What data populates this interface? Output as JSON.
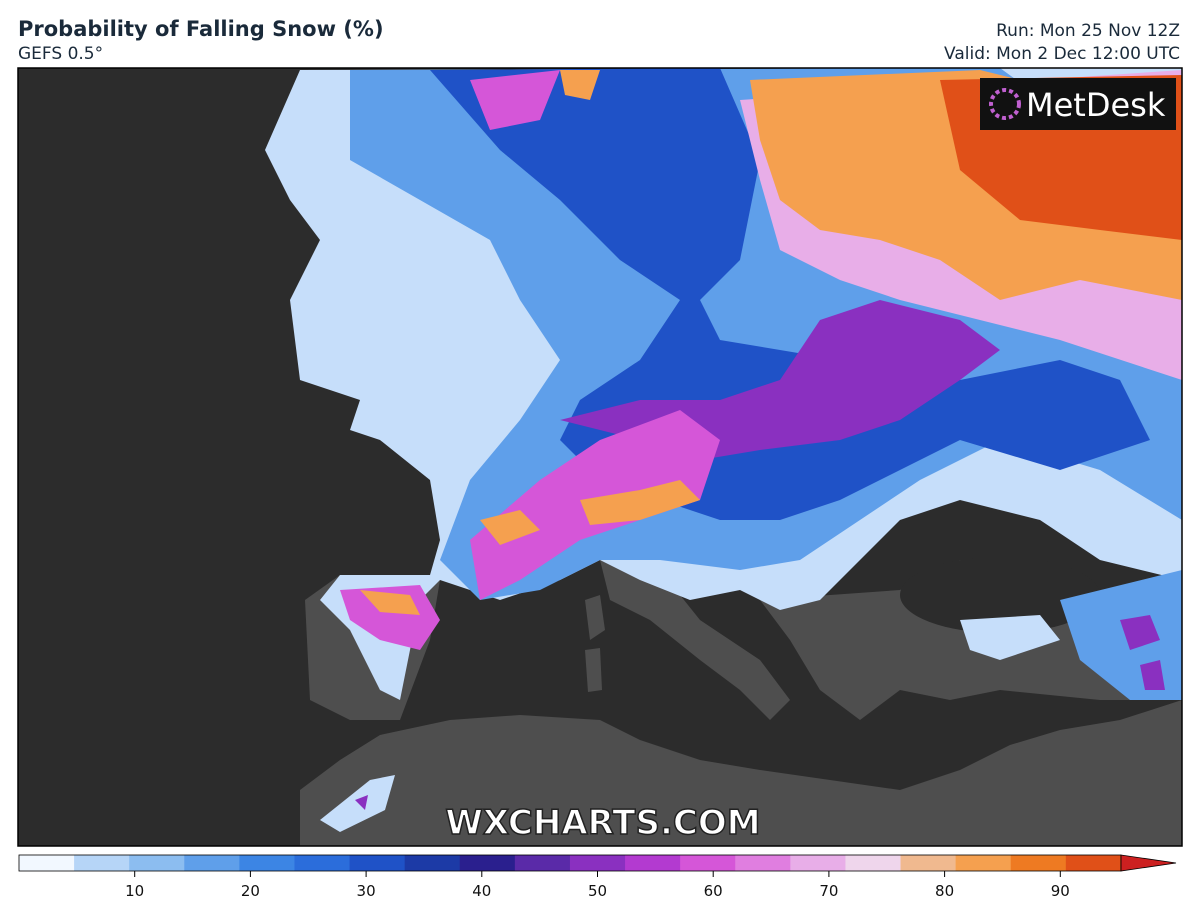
{
  "header": {
    "title": "Probability of Falling Snow (%)",
    "model": "GEFS 0.5°",
    "run": "Run: Mon 25 Nov 12Z",
    "valid": "Valid: Mon 2 Dec 12:00 UTC"
  },
  "logo": "MetDesk",
  "watermark": "WXCHARTS.COM",
  "colorbar": {
    "range": [
      0,
      100
    ],
    "ticks": [
      10,
      20,
      30,
      40,
      50,
      60,
      70,
      80,
      90
    ],
    "extend": "max",
    "colors": [
      "#f2f8ff",
      "#b6d5f7",
      "#8cbdf0",
      "#5f9fea",
      "#3c85e4",
      "#2b6ddb",
      "#1f52c7",
      "#1c3aa6",
      "#2a1f8e",
      "#5a2aa8",
      "#8a30c0",
      "#b33ad0",
      "#d556d8",
      "#e07ee0",
      "#e8aee8",
      "#efd6ec",
      "#f0b98f",
      "#f5a04f",
      "#ee7a22",
      "#e05018",
      "#cc2020"
    ]
  }
}
